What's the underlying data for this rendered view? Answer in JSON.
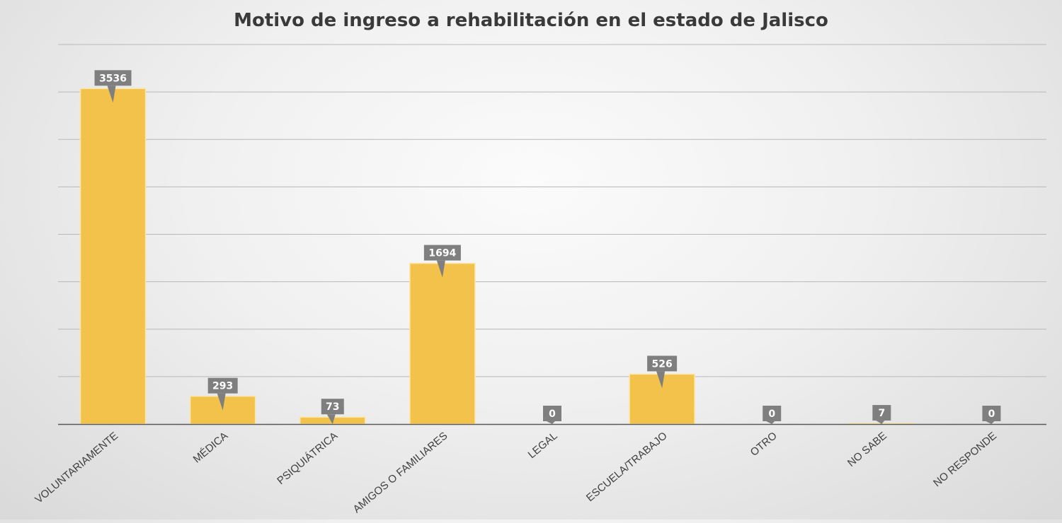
{
  "chart_data": {
    "type": "bar",
    "title": "Motivo de ingreso a rehabilitación en el estado de Jalisco",
    "categories": [
      "VOLUNTARIAMENTE",
      "MÉDICA",
      "PSIQUIÁTRICA",
      "AMIGOS O FAMILIARES",
      "LEGAL",
      "ESCUELA/TRABAJO",
      "OTRO",
      "NO SABE",
      "NO RESPONDE"
    ],
    "values": [
      3536,
      293,
      73,
      1694,
      0,
      526,
      0,
      7,
      0
    ],
    "data_labels": [
      "3536",
      "293",
      "73",
      "1694",
      "0",
      "526",
      "0",
      "7",
      "0"
    ],
    "ylim": [
      0,
      4000
    ],
    "grid": true,
    "legend": "none",
    "colors": {
      "bar": "#f2c24a",
      "bar_stroke": "#fbe6a8",
      "gridline": "#b8b8b8",
      "axis": "#595959",
      "label_bg": "#7f7f7f"
    }
  }
}
